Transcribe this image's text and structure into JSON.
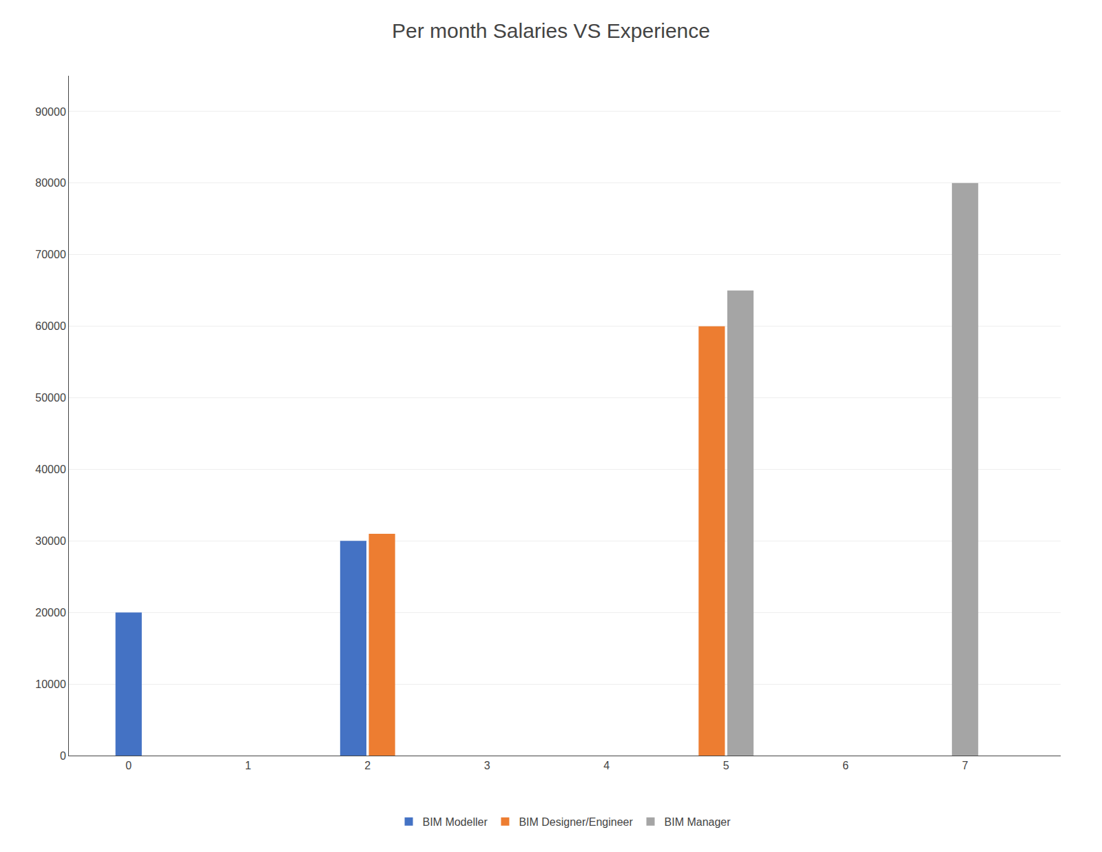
{
  "chart_data": {
    "type": "bar",
    "title": "Per month Salaries VS Experience",
    "x": [
      0,
      2,
      5,
      7
    ],
    "series": [
      {
        "name": "BIM Modeller",
        "color": "#4472c4",
        "values": [
          20000,
          30000,
          null,
          null
        ]
      },
      {
        "name": "BIM Designer/Engineer",
        "color": "#ed7d31",
        "values": [
          null,
          31000,
          60000,
          null
        ]
      },
      {
        "name": "BIM Manager",
        "color": "#a5a5a5",
        "values": [
          null,
          null,
          65000,
          80000
        ]
      }
    ],
    "xlim": [
      -0.5,
      7.8
    ],
    "xticks": [
      0,
      1,
      2,
      3,
      4,
      5,
      6,
      7
    ],
    "ylim": [
      0,
      95000
    ],
    "yticks": [
      0,
      10000,
      20000,
      30000,
      40000,
      50000,
      60000,
      70000,
      80000,
      90000
    ],
    "grid": true,
    "legend": "bottom"
  }
}
